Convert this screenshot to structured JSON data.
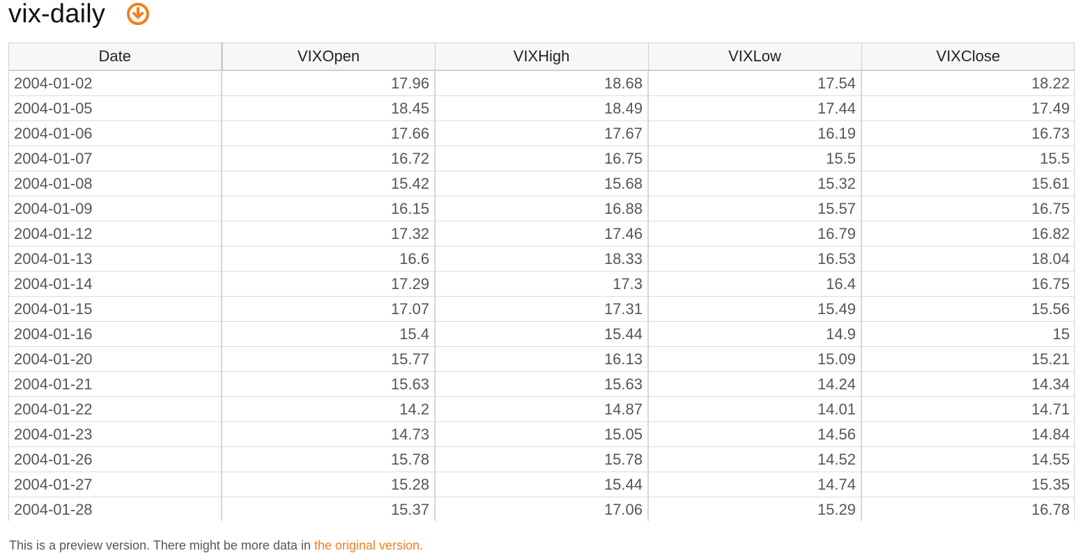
{
  "title": "vix-daily",
  "download_icon": "download-circle-icon",
  "accent_color": "#f0801a",
  "table": {
    "columns": [
      "Date",
      "VIXOpen",
      "VIXHigh",
      "VIXLow",
      "VIXClose"
    ],
    "rows": [
      [
        "2004-01-02",
        "17.96",
        "18.68",
        "17.54",
        "18.22"
      ],
      [
        "2004-01-05",
        "18.45",
        "18.49",
        "17.44",
        "17.49"
      ],
      [
        "2004-01-06",
        "17.66",
        "17.67",
        "16.19",
        "16.73"
      ],
      [
        "2004-01-07",
        "16.72",
        "16.75",
        "15.5",
        "15.5"
      ],
      [
        "2004-01-08",
        "15.42",
        "15.68",
        "15.32",
        "15.61"
      ],
      [
        "2004-01-09",
        "16.15",
        "16.88",
        "15.57",
        "16.75"
      ],
      [
        "2004-01-12",
        "17.32",
        "17.46",
        "16.79",
        "16.82"
      ],
      [
        "2004-01-13",
        "16.6",
        "18.33",
        "16.53",
        "18.04"
      ],
      [
        "2004-01-14",
        "17.29",
        "17.3",
        "16.4",
        "16.75"
      ],
      [
        "2004-01-15",
        "17.07",
        "17.31",
        "15.49",
        "15.56"
      ],
      [
        "2004-01-16",
        "15.4",
        "15.44",
        "14.9",
        "15"
      ],
      [
        "2004-01-20",
        "15.77",
        "16.13",
        "15.09",
        "15.21"
      ],
      [
        "2004-01-21",
        "15.63",
        "15.63",
        "14.24",
        "14.34"
      ],
      [
        "2004-01-22",
        "14.2",
        "14.87",
        "14.01",
        "14.71"
      ],
      [
        "2004-01-23",
        "14.73",
        "15.05",
        "14.56",
        "14.84"
      ],
      [
        "2004-01-26",
        "15.78",
        "15.78",
        "14.52",
        "14.55"
      ],
      [
        "2004-01-27",
        "15.28",
        "15.44",
        "14.74",
        "15.35"
      ],
      [
        "2004-01-28",
        "15.37",
        "17.06",
        "15.29",
        "16.78"
      ]
    ]
  },
  "footer": {
    "text": "This is a preview version. There might be more data in ",
    "link_text": "the original version."
  }
}
